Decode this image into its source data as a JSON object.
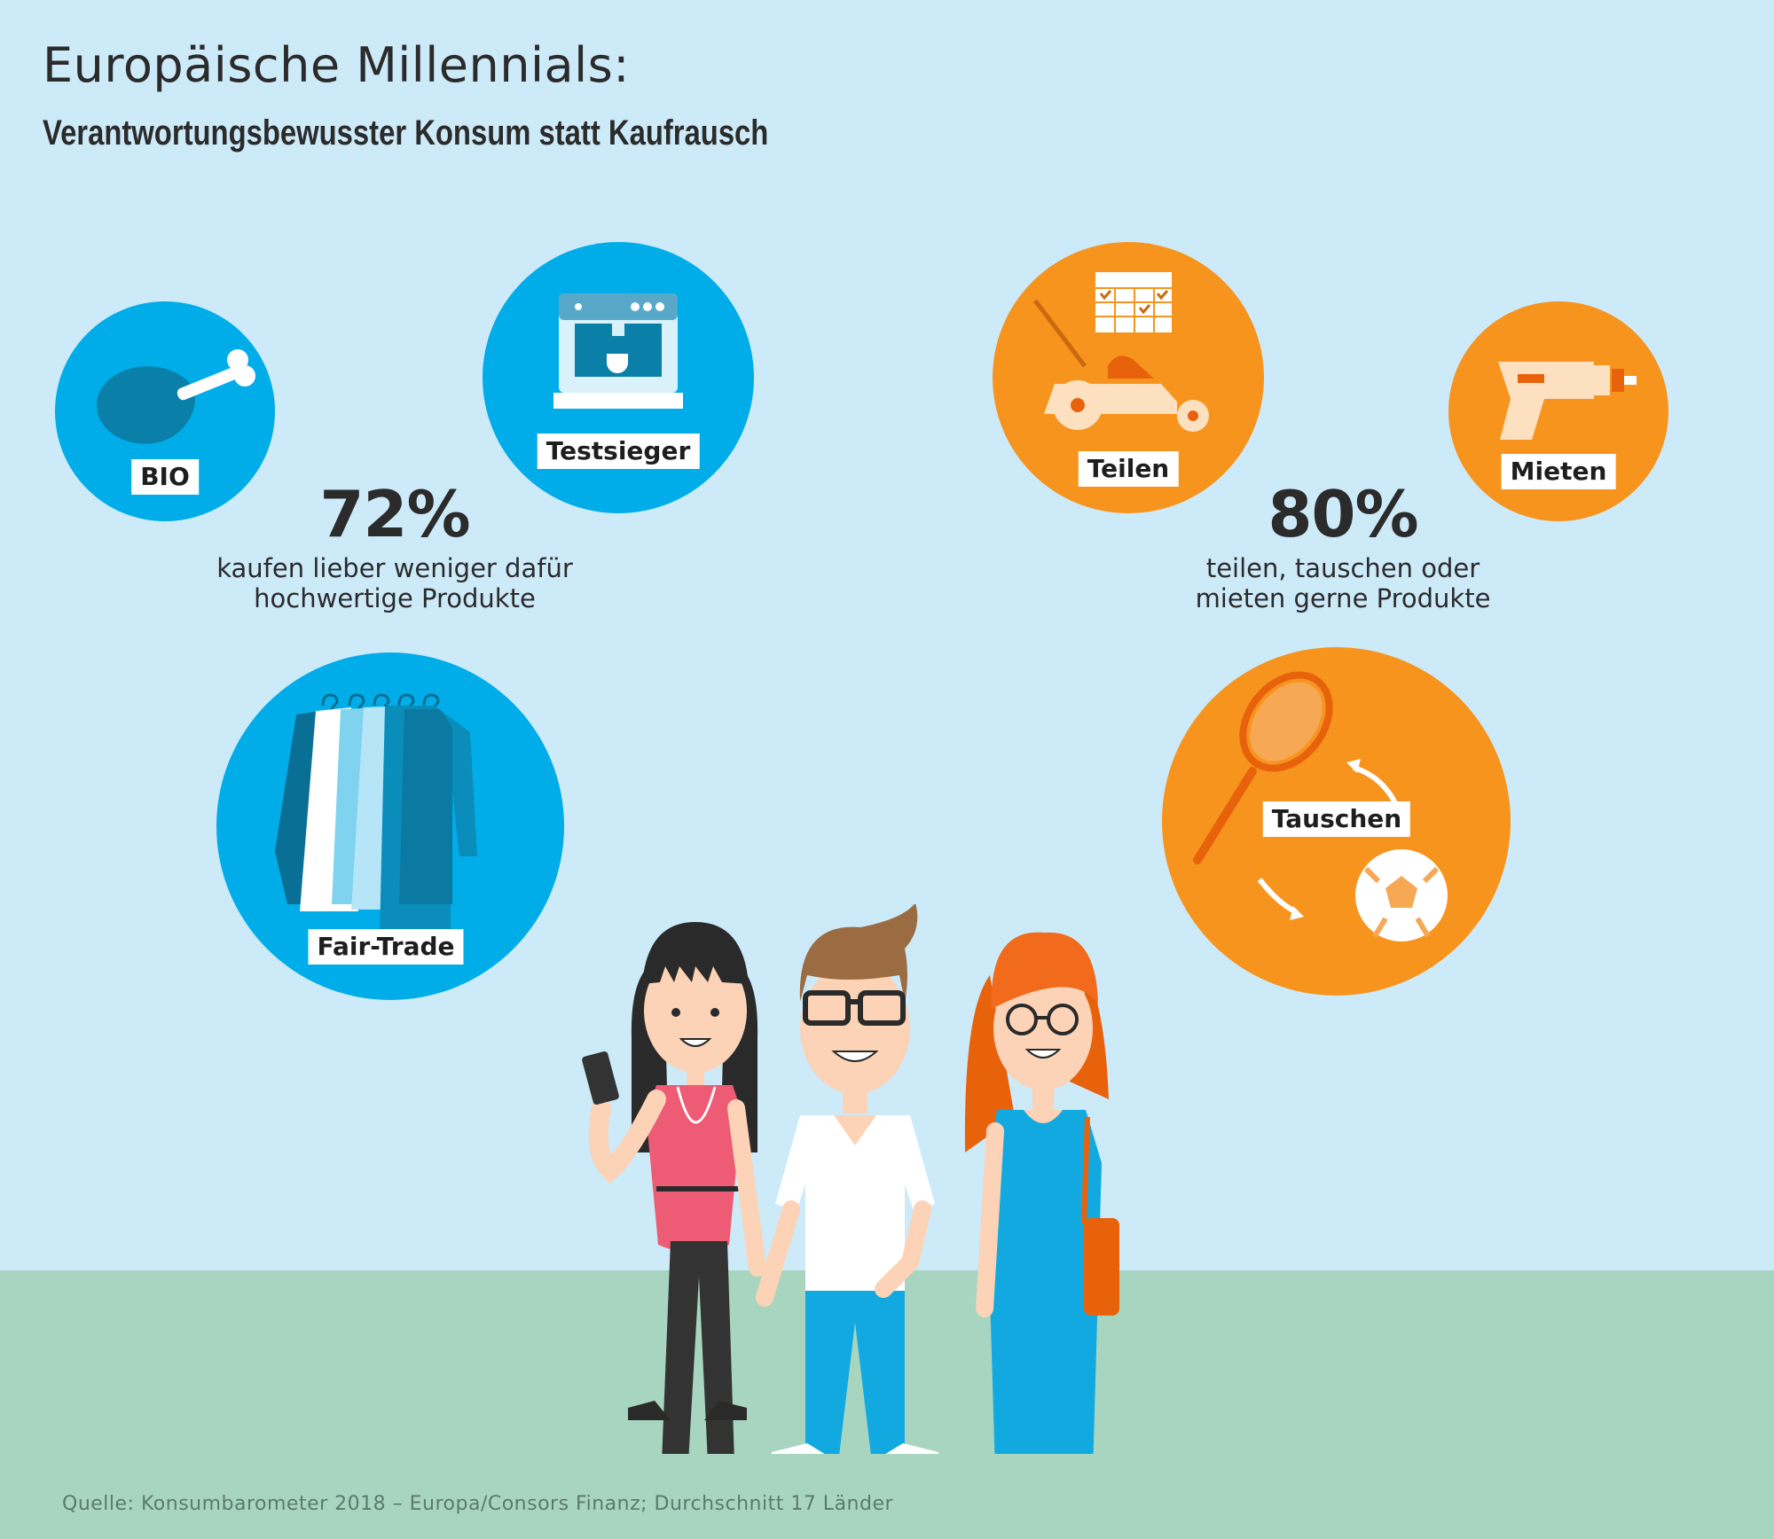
{
  "header": {
    "title": "Europäische Millennials:",
    "subtitle": "Verantwortungsbewusster Konsum statt Kaufrausch"
  },
  "left_group": {
    "percent": "72%",
    "description_line1": "kaufen lieber weniger dafür",
    "description_line2": "hochwertige Produkte",
    "circles": [
      {
        "label": "BIO",
        "icon": "chicken-leg-icon",
        "color": "#00ade8"
      },
      {
        "label": "Testsieger",
        "icon": "coffee-machine-icon",
        "color": "#00ade8"
      },
      {
        "label": "Fair-Trade",
        "icon": "clothes-rack-icon",
        "color": "#00ade8"
      }
    ]
  },
  "right_group": {
    "percent": "80%",
    "description_line1": "teilen, tauschen oder",
    "description_line2": "mieten gerne Produkte",
    "circles": [
      {
        "label": "Teilen",
        "icon": "lawnmower-calendar-icon",
        "color": "#f7941d"
      },
      {
        "label": "Mieten",
        "icon": "drill-icon",
        "color": "#f7941d"
      },
      {
        "label": "Tauschen",
        "icon": "racket-ball-swap-icon",
        "color": "#f7941d"
      }
    ]
  },
  "illustration": {
    "icon": "three-millennials-illustration"
  },
  "footer": {
    "source": "Quelle: Konsumbarometer 2018 – Europa/Consors Finanz; Durchschnitt 17 Länder"
  }
}
